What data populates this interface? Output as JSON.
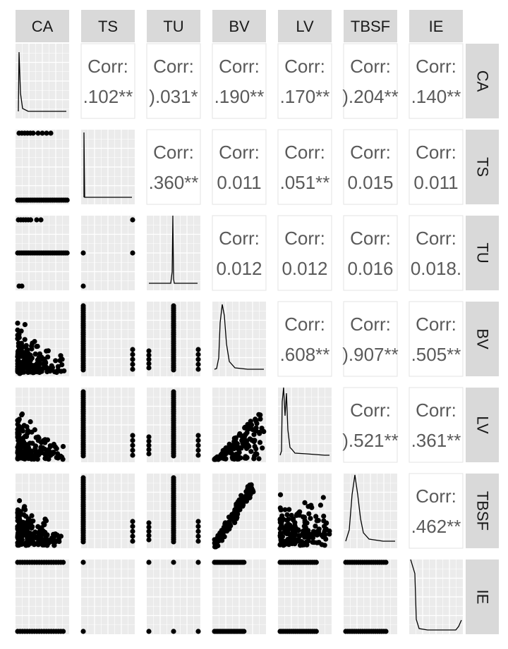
{
  "chart_data": {
    "type": "scatter",
    "variables": [
      "CA",
      "TS",
      "TU",
      "BV",
      "LV",
      "TBSF",
      "IE"
    ],
    "corr_label": "Corr:",
    "correlations": [
      {
        "row": "TS",
        "col": "CA",
        "text": ".102**"
      },
      {
        "row": "TU",
        "col": "CA",
        "text": ").031*"
      },
      {
        "row": "BV",
        "col": "CA",
        "text": ".190**"
      },
      {
        "row": "LV",
        "col": "CA",
        "text": ".170**"
      },
      {
        "row": "TBSF",
        "col": "CA",
        "text": ").204**"
      },
      {
        "row": "IE",
        "col": "CA",
        "text": ".140**"
      },
      {
        "row": "TU",
        "col": "TS",
        "text": ".360**"
      },
      {
        "row": "BV",
        "col": "TS",
        "text": "0.011"
      },
      {
        "row": "LV",
        "col": "TS",
        "text": ".051**"
      },
      {
        "row": "TBSF",
        "col": "TS",
        "text": "0.015"
      },
      {
        "row": "IE",
        "col": "TS",
        "text": "0.011"
      },
      {
        "row": "BV",
        "col": "TU",
        "text": "0.012"
      },
      {
        "row": "LV",
        "col": "TU",
        "text": "0.012"
      },
      {
        "row": "TBSF",
        "col": "TU",
        "text": "0.016"
      },
      {
        "row": "IE",
        "col": "TU",
        "text": "0.018."
      },
      {
        "row": "LV",
        "col": "BV",
        "text": ".608**"
      },
      {
        "row": "TBSF",
        "col": "BV",
        "text": ").907**"
      },
      {
        "row": "IE",
        "col": "BV",
        "text": ".505**"
      },
      {
        "row": "TBSF",
        "col": "LV",
        "text": ").521**"
      },
      {
        "row": "IE",
        "col": "LV",
        "text": ".361**"
      },
      {
        "row": "IE",
        "col": "TBSF",
        "text": ".462**"
      }
    ],
    "grid": true,
    "point_color": "#000000",
    "strip_color": "#d9d9d9",
    "panel_background": "#ebebeb"
  }
}
